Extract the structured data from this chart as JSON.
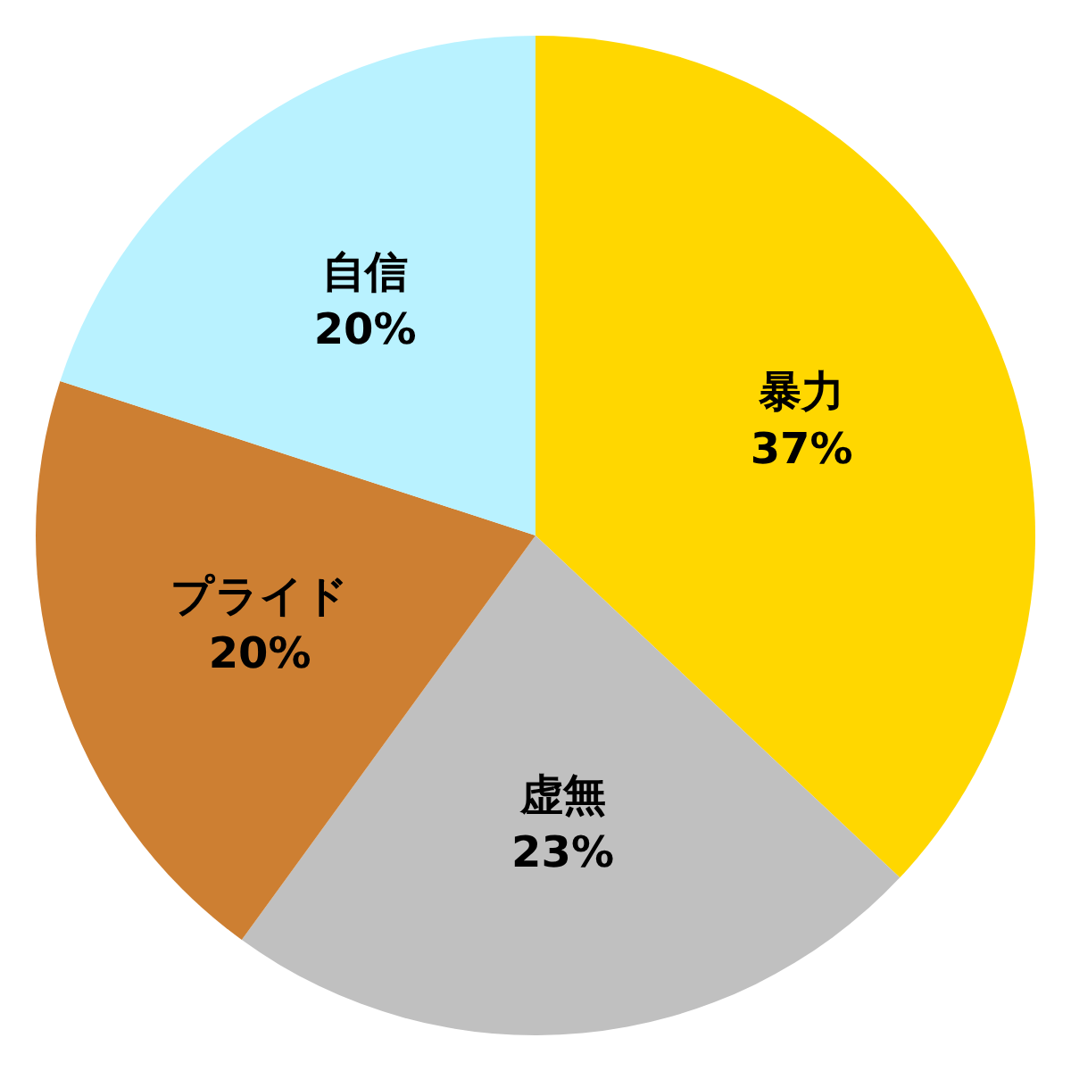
{
  "chart_data": {
    "type": "pie",
    "categories": [
      "暴力",
      "虚無",
      "プライド",
      "自信"
    ],
    "values": [
      37,
      23,
      20,
      20
    ],
    "colors": [
      "#ffd700",
      "#c0c0c0",
      "#cd7f32",
      "#b9f2ff"
    ],
    "value_labels": [
      "37%",
      "23%",
      "20%",
      "20%"
    ]
  }
}
